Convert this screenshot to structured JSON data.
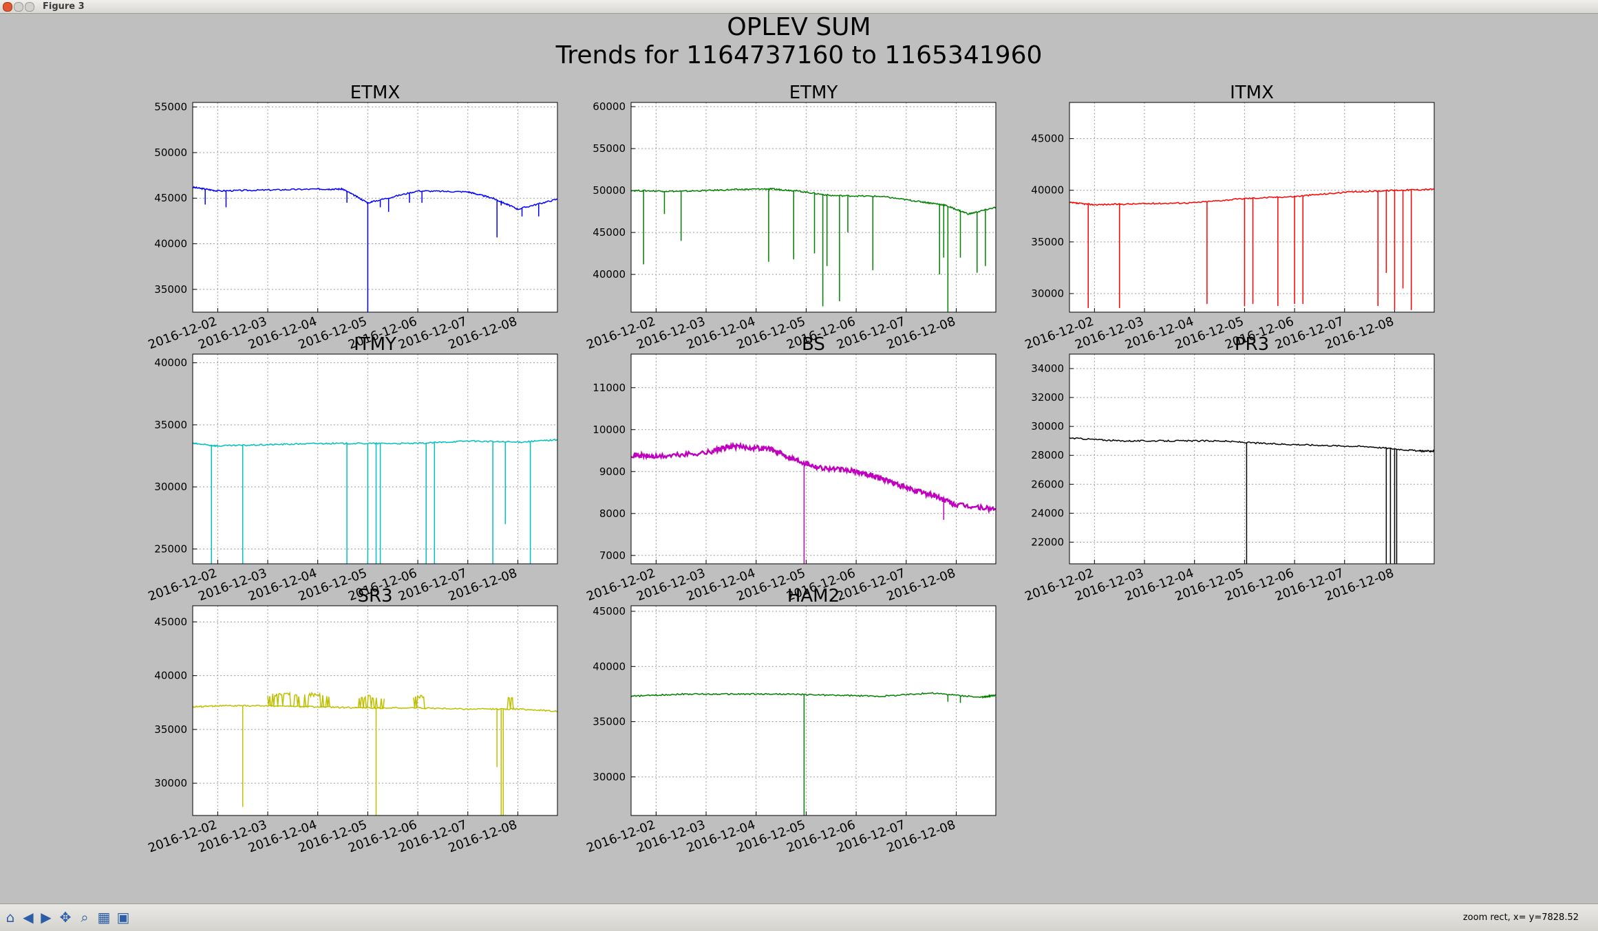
{
  "window": {
    "title": "Figure 3"
  },
  "figure": {
    "title_line1": "OPLEV SUM",
    "title_line2": "Trends for 1164737160 to 1165341960"
  },
  "x_tick_labels": [
    "2016-12-02",
    "2016-12-03",
    "2016-12-04",
    "2016-12-05",
    "2016-12-06",
    "2016-12-07",
    "2016-12-08"
  ],
  "toolbar": {
    "icons": [
      "home-icon",
      "back-icon",
      "forward-icon",
      "pan-icon",
      "zoom-icon",
      "subplots-icon",
      "save-icon"
    ],
    "status": "zoom rect, x= y=7828.52"
  },
  "chart_data": [
    {
      "type": "line",
      "title": "ETMX",
      "color": "#0000ff",
      "x_range": [
        "2016-12-01T12:00",
        "2016-12-08T19:00"
      ],
      "ylim": [
        32500,
        55500
      ],
      "yticks": [
        35000,
        40000,
        45000,
        50000,
        55000
      ],
      "grid": true,
      "lw": 1.5,
      "x": [
        "12-01 12:00",
        "12-02 00:00",
        "12-03 00:00",
        "12-04 00:00",
        "12-04 12:00",
        "12-05 00:00",
        "12-06 00:00",
        "12-07 00:00",
        "12-07 12:00",
        "12-08 00:00",
        "12-08 19:00"
      ],
      "y": [
        46200,
        45800,
        45900,
        46000,
        46000,
        44500,
        45800,
        45700,
        45000,
        43800,
        44900
      ],
      "spikes": [
        [
          "12-01 18:00",
          44300
        ],
        [
          "12-02 04:00",
          44000
        ],
        [
          "12-04 14:00",
          44500
        ],
        [
          "12-05 02:00",
          44500
        ],
        [
          "12-05 06:00",
          44000
        ],
        [
          "12-05 10:00",
          43500
        ],
        [
          "12-05 20:00",
          44500
        ],
        [
          "12-06 02:00",
          44500
        ],
        [
          "12-07 14:00",
          40700
        ],
        [
          "12-07 16:00",
          44200
        ],
        [
          "12-08 02:00",
          43000
        ],
        [
          "12-08 10:00",
          43000
        ]
      ],
      "deep_spike": [
        "12-05 00:00",
        32500
      ]
    },
    {
      "type": "line",
      "title": "ETMY",
      "color": "#008000",
      "x_range": [
        "2016-12-01T12:00",
        "2016-12-08T19:00"
      ],
      "ylim": [
        35500,
        60500
      ],
      "yticks": [
        40000,
        45000,
        50000,
        55000,
        60000
      ],
      "grid": true,
      "lw": 1.5,
      "x": [
        "12-01 12:00",
        "12-02 12:00",
        "12-03 12:00",
        "12-04 06:00",
        "12-04 18:00",
        "12-05 12:00",
        "12-06 12:00",
        "12-07 06:00",
        "12-07 18:00",
        "12-08 06:00",
        "12-08 19:00"
      ],
      "y": [
        50000,
        49900,
        50100,
        50200,
        50000,
        49400,
        49300,
        48700,
        48300,
        47200,
        48000
      ],
      "spikes": [
        [
          "12-01 18:00",
          41200
        ],
        [
          "12-02 04:00",
          47200
        ],
        [
          "12-02 12:00",
          44000
        ],
        [
          "12-04 06:00",
          41500
        ],
        [
          "12-04 18:00",
          41800
        ],
        [
          "12-05 04:00",
          42500
        ],
        [
          "12-05 08:00",
          36200
        ],
        [
          "12-05 10:00",
          41000
        ],
        [
          "12-05 16:00",
          36800
        ],
        [
          "12-05 20:00",
          45000
        ],
        [
          "12-06 08:00",
          40500
        ],
        [
          "12-07 16:00",
          40000
        ],
        [
          "12-07 18:00",
          42000
        ],
        [
          "12-08 02:00",
          42000
        ],
        [
          "12-08 10:00",
          40200
        ],
        [
          "12-08 14:00",
          41000
        ]
      ],
      "deep_spike": [
        "12-07 20:00",
        35500
      ]
    },
    {
      "type": "line",
      "title": "ITMX",
      "color": "#ff0000",
      "x_range": [
        "2016-12-01T12:00",
        "2016-12-08T19:00"
      ],
      "ylim": [
        28200,
        48500
      ],
      "yticks": [
        30000,
        35000,
        40000,
        45000
      ],
      "grid": true,
      "lw": 1.5,
      "x": [
        "12-01 12:00",
        "12-02 00:00",
        "12-03 00:00",
        "12-04 00:00",
        "12-05 00:00",
        "12-06 00:00",
        "12-07 00:00",
        "12-08 00:00",
        "12-08 19:00"
      ],
      "y": [
        38800,
        38600,
        38700,
        38800,
        39200,
        39400,
        39800,
        40000,
        40100
      ],
      "spikes": [
        [
          "12-01 21:00",
          28600
        ],
        [
          "12-02 12:00",
          28600
        ],
        [
          "12-04 06:00",
          29000
        ],
        [
          "12-05 00:00",
          28800
        ],
        [
          "12-05 04:00",
          29000
        ],
        [
          "12-05 16:00",
          28800
        ],
        [
          "12-06 00:00",
          29000
        ],
        [
          "12-06 04:00",
          29000
        ],
        [
          "12-07 16:00",
          28800
        ],
        [
          "12-07 20:00",
          32000
        ],
        [
          "12-08 00:00",
          28400
        ],
        [
          "12-08 04:00",
          30500
        ],
        [
          "12-08 08:00",
          28400
        ]
      ],
      "deep_spike": null
    },
    {
      "type": "line",
      "title": "ITMY",
      "color": "#00bfbf",
      "x_range": [
        "2016-12-01T12:00",
        "2016-12-08T19:00"
      ],
      "ylim": [
        23800,
        40700
      ],
      "yticks": [
        25000,
        30000,
        35000,
        40000
      ],
      "grid": true,
      "lw": 1.5,
      "x": [
        "12-01 12:00",
        "12-02 00:00",
        "12-03 00:00",
        "12-04 00:00",
        "12-05 00:00",
        "12-06 00:00",
        "12-07 00:00",
        "12-08 00:00",
        "12-08 19:00"
      ],
      "y": [
        33500,
        33300,
        33400,
        33500,
        33500,
        33500,
        33700,
        33600,
        33800
      ],
      "spikes": [
        [
          "12-01 21:00",
          23800
        ],
        [
          "12-02 12:00",
          23800
        ],
        [
          "12-04 14:00",
          23800
        ],
        [
          "12-05 00:00",
          23800
        ],
        [
          "12-05 04:00",
          23800
        ],
        [
          "12-05 06:00",
          23800
        ],
        [
          "12-06 04:00",
          23800
        ],
        [
          "12-06 08:00",
          23800
        ],
        [
          "12-07 12:00",
          23800
        ],
        [
          "12-07 18:00",
          27000
        ],
        [
          "12-08 06:00",
          23800
        ]
      ],
      "deep_spike": null
    },
    {
      "type": "line",
      "title": "BS",
      "color": "#bf00bf",
      "x_range": [
        "2016-12-01T12:00",
        "2016-12-08T19:00"
      ],
      "ylim": [
        6800,
        11800
      ],
      "yticks": [
        7000,
        8000,
        9000,
        10000,
        11000
      ],
      "grid": true,
      "lw": 2.5,
      "x": [
        "12-01 12:00",
        "12-02 00:00",
        "12-03 00:00",
        "12-03 12:00",
        "12-04 06:00",
        "12-04 18:00",
        "12-05 06:00",
        "12-06 00:00",
        "12-06 12:00",
        "12-07 00:00",
        "12-07 12:00",
        "12-08 00:00",
        "12-08 19:00"
      ],
      "y": [
        9400,
        9350,
        9450,
        9600,
        9550,
        9300,
        9100,
        9000,
        8850,
        8600,
        8450,
        8200,
        8100
      ],
      "spikes": [
        [
          "12-07 18:00",
          7850
        ]
      ],
      "deep_spike": [
        "12-04 23:00",
        6800
      ]
    },
    {
      "type": "line",
      "title": "PR3",
      "color": "#000000",
      "x_range": [
        "2016-12-01T12:00",
        "2016-12-08T19:00"
      ],
      "ylim": [
        20500,
        35000
      ],
      "yticks": [
        22000,
        24000,
        26000,
        28000,
        30000,
        32000,
        34000
      ],
      "grid": true,
      "lw": 1.5,
      "x": [
        "12-01 12:00",
        "12-02 12:00",
        "12-03 12:00",
        "12-04 12:00",
        "12-05 12:00",
        "12-06 12:00",
        "12-07 12:00",
        "12-08 12:00",
        "12-08 19:00"
      ],
      "y": [
        29200,
        29000,
        29000,
        29000,
        28800,
        28700,
        28600,
        28300,
        28300
      ],
      "spikes": [
        [
          "12-05 01:00",
          20500
        ],
        [
          "12-07 20:00",
          20500
        ],
        [
          "12-07 22:00",
          20500
        ],
        [
          "12-08 00:00",
          20500
        ],
        [
          "12-08 01:00",
          20500
        ]
      ],
      "deep_spike": null
    },
    {
      "type": "line",
      "title": "SR3",
      "color": "#bfbf00",
      "x_range": [
        "2016-12-01T12:00",
        "2016-12-08T19:00"
      ],
      "ylim": [
        27000,
        46500
      ],
      "yticks": [
        30000,
        35000,
        40000,
        45000
      ],
      "grid": true,
      "lw": 1.5,
      "x": [
        "12-01 12:00",
        "12-02 00:00",
        "12-03 00:00",
        "12-04 00:00",
        "12-05 00:00",
        "12-06 00:00",
        "12-07 00:00",
        "12-08 00:00",
        "12-08 19:00"
      ],
      "y": [
        37100,
        37200,
        37200,
        37100,
        37000,
        37000,
        36900,
        36900,
        36700
      ],
      "bursts": [
        [
          "12-03 00:00",
          "12-04 06:00",
          38400
        ],
        [
          "12-04 18:00",
          "12-05 08:00",
          38200
        ],
        [
          "12-05 22:00",
          "12-06 04:00",
          38200
        ],
        [
          "12-07 18:00",
          "12-07 22:00",
          38000
        ]
      ],
      "spikes": [
        [
          "12-02 12:00",
          27800
        ],
        [
          "12-05 04:00",
          27000
        ],
        [
          "12-07 14:00",
          31500
        ],
        [
          "12-07 16:00",
          27000
        ],
        [
          "12-07 17:00",
          27000
        ]
      ],
      "deep_spike": null
    },
    {
      "type": "line",
      "title": "HAM2",
      "color": "#008000",
      "x_range": [
        "2016-12-01T12:00",
        "2016-12-08T19:00"
      ],
      "ylim": [
        26500,
        45500
      ],
      "yticks": [
        30000,
        35000,
        40000,
        45000
      ],
      "grid": true,
      "lw": 1.5,
      "x": [
        "12-01 12:00",
        "12-02 12:00",
        "12-03 12:00",
        "12-04 12:00",
        "12-05 12:00",
        "12-06 12:00",
        "12-07 12:00",
        "12-08 12:00",
        "12-08 19:00"
      ],
      "y": [
        37300,
        37500,
        37500,
        37500,
        37400,
        37300,
        37600,
        37200,
        37400
      ],
      "spikes": [
        [
          "12-07 20:00",
          36800
        ],
        [
          "12-08 02:00",
          36700
        ]
      ],
      "deep_spike": [
        "12-04 23:00",
        26500
      ]
    }
  ]
}
